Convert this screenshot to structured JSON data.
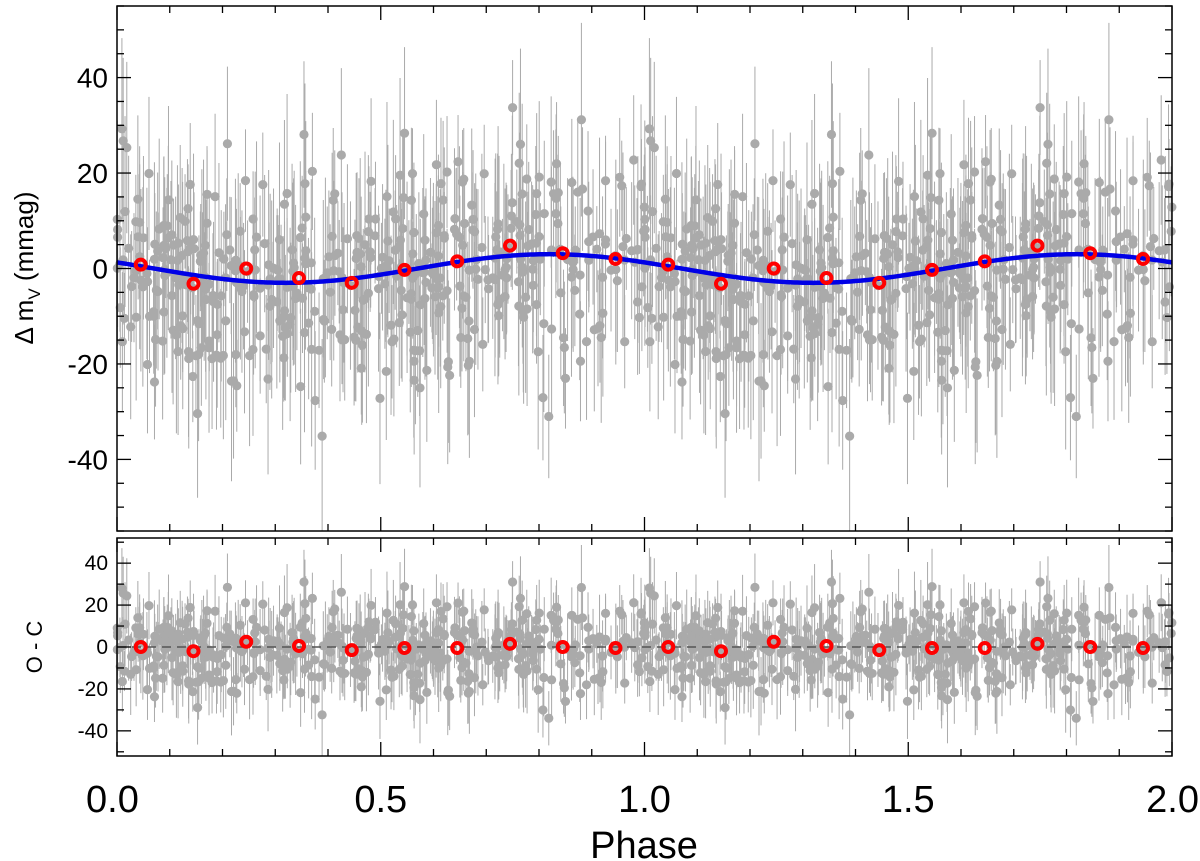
{
  "colors": {
    "raw_points": "#aaaaaa",
    "binned_points": "#ff0000",
    "fit_curve": "#0000e6",
    "zero_line": "#555555",
    "axes": "#000000"
  },
  "chart_data": [
    {
      "type": "scatter",
      "panel": "top",
      "xlabel": "Phase",
      "ylabel_main": "Δ m",
      "ylabel_sub": "V",
      "ylabel_unit": " (mmag)",
      "xlim": [
        0.0,
        2.0
      ],
      "ylim": [
        -55,
        55
      ],
      "xticks": [
        0.0,
        0.5,
        1.0,
        1.5,
        2.0
      ],
      "xtick_labels": [
        "0.0",
        "0.5",
        "1.0",
        "1.5",
        "2.0"
      ],
      "yticks": [
        -40,
        -20,
        0,
        20,
        40
      ],
      "ytick_labels": [
        "-40",
        "-20",
        "0",
        "20",
        "40"
      ],
      "grid": false,
      "legend": "none",
      "series": [
        {
          "kind": "binned",
          "x": [
            0.045,
            0.145,
            0.245,
            0.345,
            0.445,
            0.545,
            0.645,
            0.745,
            0.845,
            0.945,
            1.045,
            1.145,
            1.245,
            1.345,
            1.445,
            1.545,
            1.645,
            1.745,
            1.845,
            1.945
          ],
          "y": [
            0.8,
            -3.2,
            0.0,
            -2.0,
            -3.0,
            -0.3,
            1.5,
            4.8,
            3.2,
            2.0,
            0.8,
            -3.2,
            0.0,
            -2.0,
            -3.0,
            -0.3,
            1.5,
            4.8,
            3.2,
            2.0
          ],
          "yerr": [
            1.0,
            1.0,
            1.0,
            1.0,
            1.0,
            1.0,
            1.0,
            1.0,
            1.0,
            1.0,
            1.0,
            1.0,
            1.0,
            1.0,
            1.0,
            1.0,
            1.0,
            1.0,
            1.0,
            1.0
          ]
        },
        {
          "kind": "fit",
          "model": "y = A*cos(2*pi*(phase - phi0))",
          "amplitude": 3.0,
          "phase_of_maximum": 0.82
        },
        {
          "kind": "raw",
          "n_per_unit_phase": 500,
          "scatter_sigma": 11,
          "typical_error": 15,
          "range_y": [
            -34,
            31
          ]
        }
      ]
    },
    {
      "type": "scatter",
      "panel": "bottom",
      "xlabel": "Phase",
      "ylabel": "O - C",
      "xlim": [
        0.0,
        2.0
      ],
      "ylim": [
        -52,
        52
      ],
      "yticks": [
        -40,
        -20,
        0,
        20,
        40
      ],
      "ytick_labels": [
        "-40",
        "-20",
        "0",
        "20",
        "40"
      ],
      "grid": false,
      "legend": "none",
      "reference_line_y": 0,
      "series": [
        {
          "kind": "binned",
          "x": [
            0.045,
            0.145,
            0.245,
            0.345,
            0.445,
            0.545,
            0.645,
            0.745,
            0.845,
            0.945,
            1.045,
            1.145,
            1.245,
            1.345,
            1.445,
            1.545,
            1.645,
            1.745,
            1.845,
            1.945
          ],
          "y": [
            0.0,
            -2.0,
            2.5,
            0.5,
            -1.5,
            -0.5,
            -0.5,
            1.5,
            0.0,
            -0.5,
            0.0,
            -2.0,
            2.5,
            0.5,
            -1.5,
            -0.5,
            -0.5,
            1.5,
            0.0,
            -0.5
          ]
        },
        {
          "kind": "raw",
          "n_per_unit_phase": 500,
          "scatter_sigma": 11,
          "typical_error": 15,
          "range_y": [
            -34,
            31
          ]
        }
      ]
    }
  ]
}
